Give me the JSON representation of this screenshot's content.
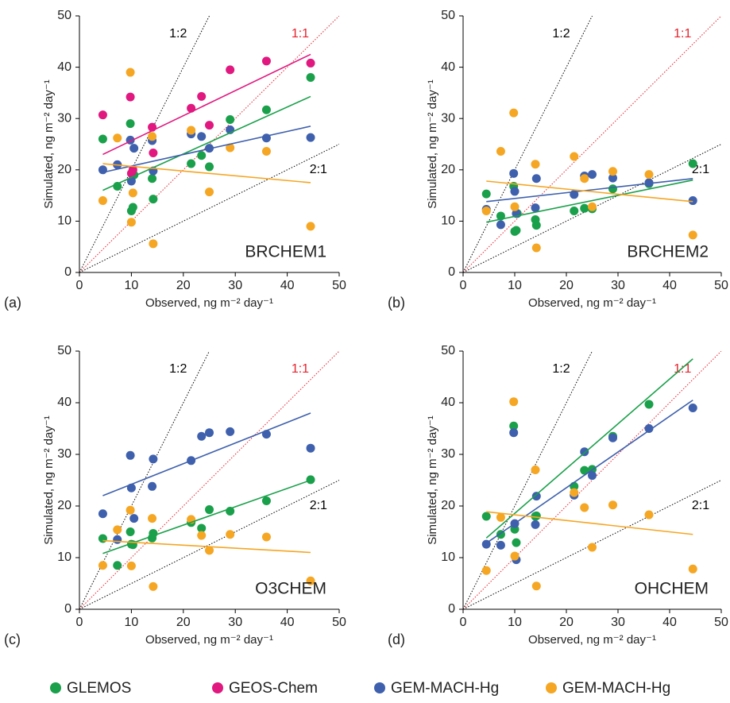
{
  "chart_data": [
    {
      "type": "scatter",
      "panel": "(a)",
      "name": "BRCHEM1",
      "x_label": "Observed,  ng m⁻² day⁻¹",
      "y_label": "Simulated,  ng m⁻² day⁻¹",
      "xlim": [
        0,
        50
      ],
      "ylim": [
        0,
        50
      ],
      "xticks": [
        0,
        10,
        20,
        30,
        40,
        50
      ],
      "yticks": [
        0,
        10,
        20,
        30,
        40,
        50
      ],
      "reference_lines": [
        {
          "label": "1:2",
          "slope": 2,
          "color": "#000000"
        },
        {
          "label": "1:1",
          "slope": 1,
          "color": "#e8202a"
        },
        {
          "label": "2:1",
          "slope": 0.5,
          "color": "#000000"
        }
      ],
      "series": [
        {
          "name": "GLEMOS",
          "color": "#1aa04a",
          "x": [
            4.5,
            7.3,
            9.8,
            10,
            10.3,
            10.5,
            14,
            14.2,
            21.5,
            23.5,
            25,
            29,
            36,
            44.5
          ],
          "values": [
            26,
            16.8,
            29,
            12,
            12.7,
            19,
            18.3,
            14.3,
            21.2,
            22.8,
            20.6,
            29.8,
            31.7,
            38
          ],
          "trend_x": [
            4.5,
            44.5
          ],
          "trend_y": [
            16,
            34.3
          ]
        },
        {
          "name": "GEOS-Chem",
          "color": "#e0187f",
          "x": [
            4.5,
            7.3,
            9.8,
            10,
            10.3,
            14,
            14.2,
            21.5,
            23.5,
            25,
            29,
            36,
            44.5
          ],
          "values": [
            30.7,
            21,
            34.2,
            19.3,
            20,
            28.3,
            23.3,
            32,
            34.3,
            28.7,
            39.5,
            41.2,
            40.8
          ],
          "trend_x": [
            4.5,
            44.5
          ],
          "trend_y": [
            23,
            42.5
          ]
        },
        {
          "name": "GEM-MACH-Hg",
          "color": "#3e60ad",
          "x": [
            4.5,
            7.3,
            9.8,
            10,
            10.5,
            14,
            14.2,
            21.5,
            23.5,
            25,
            29,
            36,
            44.5
          ],
          "values": [
            20,
            21,
            25.8,
            17.8,
            24.2,
            25.7,
            19.8,
            27,
            26.5,
            24.2,
            27.8,
            26.2,
            26.3
          ],
          "trend_x": [
            4.5,
            44.5
          ],
          "trend_y": [
            19.5,
            28.5
          ]
        },
        {
          "name": "GEM-MACH-Hg",
          "color": "#f5a623",
          "x": [
            4.5,
            7.3,
            9.8,
            10,
            10.3,
            14,
            14.2,
            21.5,
            25,
            29,
            36,
            44.5
          ],
          "values": [
            14,
            26.2,
            39,
            9.8,
            15.5,
            26.5,
            5.6,
            27.7,
            15.7,
            24.3,
            23.6,
            9
          ],
          "trend_x": [
            4.5,
            44.5
          ],
          "trend_y": [
            21.2,
            17.5
          ]
        }
      ]
    },
    {
      "type": "scatter",
      "panel": "(b)",
      "name": "BRCHEM2",
      "x_label": "Observed,  ng m⁻² day⁻¹",
      "y_label": "Simulated,  ng m⁻² day⁻¹",
      "xlim": [
        0,
        50
      ],
      "ylim": [
        0,
        50
      ],
      "xticks": [
        0,
        10,
        20,
        30,
        40,
        50
      ],
      "yticks": [
        0,
        10,
        20,
        30,
        40,
        50
      ],
      "reference_lines": [
        {
          "label": "1:2",
          "slope": 2,
          "color": "#000000"
        },
        {
          "label": "1:1",
          "slope": 1,
          "color": "#e8202a"
        },
        {
          "label": "2:1",
          "slope": 0.5,
          "color": "#000000"
        }
      ],
      "series": [
        {
          "name": "GLEMOS",
          "color": "#1aa04a",
          "x": [
            4.5,
            7.3,
            9.8,
            10,
            10.3,
            10.5,
            14,
            14.2,
            21.5,
            23.5,
            25,
            29,
            36,
            44.5
          ],
          "values": [
            15.3,
            11,
            16.8,
            8,
            8.2,
            11.5,
            10.3,
            9.2,
            12,
            12.5,
            12.4,
            16.3,
            17.3,
            21.2
          ],
          "trend_x": [
            4.5,
            44.5
          ],
          "trend_y": [
            9.8,
            18
          ]
        },
        {
          "name": "GEM-MACH-Hg",
          "color": "#3e60ad",
          "x": [
            4.5,
            7.3,
            9.8,
            10,
            10.3,
            14,
            14.2,
            21.5,
            23.5,
            25,
            29,
            36,
            44.5
          ],
          "values": [
            12.3,
            9.3,
            19.3,
            15.8,
            11.5,
            12.6,
            18.3,
            15.2,
            18.8,
            19.1,
            18.4,
            17.5,
            14
          ],
          "trend_x": [
            4.5,
            44.5
          ],
          "trend_y": [
            13.8,
            18.3
          ]
        },
        {
          "name": "GEM-MACH-Hg",
          "color": "#f5a623",
          "x": [
            4.5,
            7.3,
            9.8,
            10,
            14,
            14.2,
            21.5,
            23.5,
            25,
            29,
            36,
            44.5
          ],
          "values": [
            12,
            23.6,
            31.1,
            12.8,
            21.1,
            4.8,
            22.6,
            18.3,
            12.8,
            19.7,
            19.1,
            7.3
          ],
          "trend_x": [
            4.5,
            44.5
          ],
          "trend_y": [
            17.8,
            13.8
          ]
        }
      ]
    },
    {
      "type": "scatter",
      "panel": "(c)",
      "name": "O3CHEM",
      "x_label": "Observed,  ng m⁻² day⁻¹",
      "y_label": "Simulated,  ng m⁻² day⁻¹",
      "xlim": [
        0,
        50
      ],
      "ylim": [
        0,
        50
      ],
      "xticks": [
        0,
        10,
        20,
        30,
        40,
        50
      ],
      "yticks": [
        0,
        10,
        20,
        30,
        40,
        50
      ],
      "reference_lines": [
        {
          "label": "1:2",
          "slope": 2,
          "color": "#000000"
        },
        {
          "label": "1:1",
          "slope": 1,
          "color": "#e8202a"
        },
        {
          "label": "2:1",
          "slope": 0.5,
          "color": "#000000"
        }
      ],
      "series": [
        {
          "name": "GLEMOS",
          "color": "#1aa04a",
          "x": [
            4.5,
            7.3,
            9.8,
            10,
            10.3,
            14,
            14.2,
            21.5,
            23.5,
            25,
            29,
            36,
            44.5
          ],
          "values": [
            13.7,
            8.5,
            15,
            12.6,
            12.5,
            13.8,
            14.7,
            16.8,
            15.7,
            19.3,
            19,
            21,
            25.1
          ],
          "trend_x": [
            4.5,
            44.5
          ],
          "trend_y": [
            10.8,
            25
          ]
        },
        {
          "name": "GEM-MACH-Hg",
          "color": "#3e60ad",
          "x": [
            4.5,
            7.3,
            9.8,
            10,
            10.5,
            14,
            14.2,
            21.5,
            23.5,
            25,
            29,
            36,
            44.5
          ],
          "values": [
            18.5,
            13.5,
            29.8,
            23.5,
            17.6,
            23.8,
            29.1,
            28.8,
            33.5,
            34.2,
            34.4,
            33.9,
            31.2
          ],
          "trend_x": [
            4.5,
            44.5
          ],
          "trend_y": [
            22,
            38
          ]
        },
        {
          "name": "GEM-MACH-Hg",
          "color": "#f5a623",
          "x": [
            4.5,
            7.3,
            9.8,
            10,
            14,
            14.2,
            21.5,
            23.5,
            25,
            29,
            36,
            44.5
          ],
          "values": [
            8.5,
            15.4,
            19.2,
            8.4,
            17.6,
            4.4,
            17.4,
            14.3,
            11.4,
            14.5,
            14,
            5.5
          ],
          "trend_x": [
            4.5,
            44.5
          ],
          "trend_y": [
            13.3,
            11
          ]
        }
      ]
    },
    {
      "type": "scatter",
      "panel": "(d)",
      "name": "OHCHEM",
      "x_label": "Observed,  ng m⁻² day⁻¹",
      "y_label": "Simulated,  ng m⁻² day⁻¹",
      "xlim": [
        0,
        50
      ],
      "ylim": [
        0,
        50
      ],
      "xticks": [
        0,
        10,
        20,
        30,
        40,
        50
      ],
      "yticks": [
        0,
        10,
        20,
        30,
        40,
        50
      ],
      "reference_lines": [
        {
          "label": "1:2",
          "slope": 2,
          "color": "#000000"
        },
        {
          "label": "1:1",
          "slope": 1,
          "color": "#e8202a"
        },
        {
          "label": "2:1",
          "slope": 0.5,
          "color": "#000000"
        }
      ],
      "series": [
        {
          "name": "GLEMOS",
          "color": "#1aa04a",
          "x": [
            4.5,
            7.3,
            9.8,
            10,
            10.3,
            14,
            14.2,
            21.5,
            23.5,
            25,
            29,
            36
          ],
          "values": [
            18,
            14.5,
            35.5,
            15.5,
            12.9,
            18,
            18.1,
            23.8,
            26.9,
            27.1,
            33.5,
            39.7
          ],
          "trend_x": [
            4.5,
            44.5
          ],
          "trend_y": [
            13.8,
            48.5
          ]
        },
        {
          "name": "GEM-MACH-Hg",
          "color": "#3e60ad",
          "x": [
            4.5,
            7.3,
            9.8,
            10,
            10.3,
            14,
            14.2,
            21.5,
            23.5,
            25,
            29,
            36,
            44.5
          ],
          "values": [
            12.6,
            12.4,
            34.2,
            16.6,
            9.6,
            16.4,
            21.9,
            22.1,
            30.5,
            25.9,
            33.2,
            35,
            39
          ],
          "trend_x": [
            4.5,
            44.5
          ],
          "trend_y": [
            12.8,
            40.5
          ]
        },
        {
          "name": "GEM-MACH-Hg",
          "color": "#f5a623",
          "x": [
            4.5,
            7.3,
            9.8,
            10,
            14,
            14.2,
            21.5,
            23.5,
            25,
            29,
            36,
            44.5
          ],
          "values": [
            7.5,
            17.8,
            40.2,
            10.3,
            27,
            4.5,
            22.6,
            19.7,
            12,
            20.2,
            18.3,
            7.8
          ],
          "trend_x": [
            4.5,
            44.5
          ],
          "trend_y": [
            18.9,
            14.5
          ]
        }
      ]
    }
  ]
}
